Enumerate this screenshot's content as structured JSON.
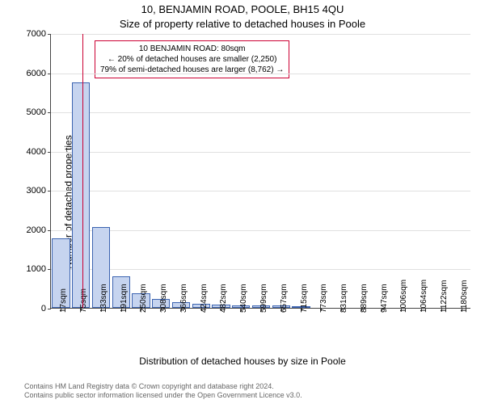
{
  "titles": {
    "line1": "10, BENJAMIN ROAD, POOLE, BH15 4QU",
    "line2": "Size of property relative to detached houses in Poole"
  },
  "axes": {
    "ylabel": "Number of detached properties",
    "xlabel": "Distribution of detached houses by size in Poole",
    "ylim": [
      0,
      7000
    ],
    "ytick_step": 1000,
    "ytick_labels": [
      "0",
      "1000",
      "2000",
      "3000",
      "4000",
      "5000",
      "6000",
      "7000"
    ],
    "xtick_labels": [
      "17sqm",
      "75sqm",
      "133sqm",
      "191sqm",
      "250sqm",
      "308sqm",
      "366sqm",
      "424sqm",
      "482sqm",
      "540sqm",
      "599sqm",
      "657sqm",
      "715sqm",
      "773sqm",
      "831sqm",
      "889sqm",
      "947sqm",
      "1006sqm",
      "1064sqm",
      "1122sqm",
      "1180sqm"
    ],
    "grid_color": "#e0e0e0"
  },
  "chart": {
    "type": "histogram",
    "categories": [
      "17",
      "75",
      "133",
      "191",
      "250",
      "308",
      "366",
      "424",
      "482",
      "540",
      "599",
      "657",
      "715",
      "773",
      "831",
      "889",
      "947",
      "1006",
      "1064",
      "1122",
      "1180"
    ],
    "values": [
      1780,
      5750,
      2050,
      800,
      380,
      220,
      150,
      110,
      90,
      70,
      60,
      55,
      50,
      0,
      0,
      0,
      0,
      0,
      0,
      0,
      0
    ],
    "bar_fill": "#c6d4ef",
    "bar_stroke": "#3b63b0",
    "bar_stroke_width": 1,
    "bar_width": 0.9,
    "background_color": "#ffffff"
  },
  "marker": {
    "value_sqm": 80,
    "color": "#cc0033",
    "line_width": 1
  },
  "annotation": {
    "lines": [
      "10 BENJAMIN ROAD: 80sqm",
      "← 20% of detached houses are smaller (2,250)",
      "79% of semi-detached houses are larger (8,762) →"
    ],
    "border_color": "#cc0033",
    "text_color": "#000000",
    "fontsize": 10
  },
  "footer": {
    "lines": [
      "Contains HM Land Registry data © Crown copyright and database right 2024.",
      "Contains public sector information licensed under the Open Government Licence v3.0."
    ]
  }
}
